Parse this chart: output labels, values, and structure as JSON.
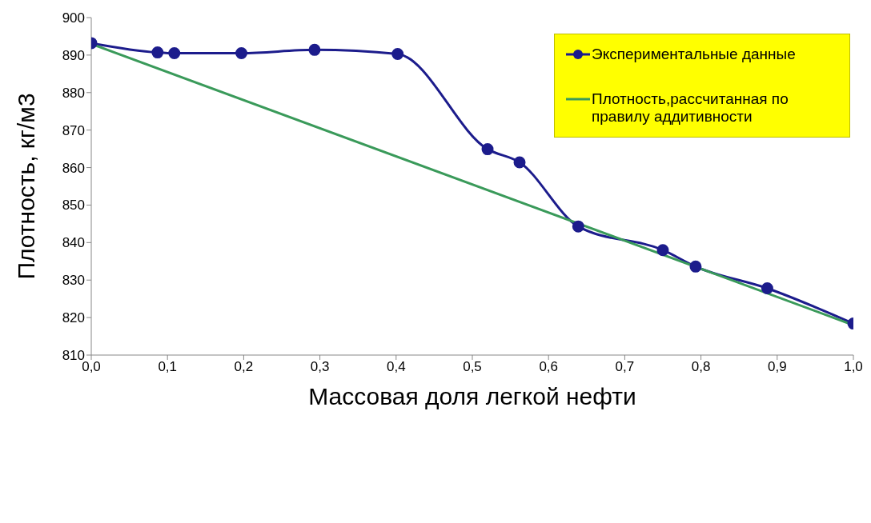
{
  "chart_data": {
    "type": "line",
    "xlabel": "Массовая доля легкой нефти",
    "ylabel": "Плотность,  кг/м3",
    "xlim": [
      0,
      1
    ],
    "xticks": [
      {
        "value": 0,
        "label": "0,0"
      },
      {
        "value": 0.1,
        "label": "0,1"
      },
      {
        "value": 0.2,
        "label": "0,2"
      },
      {
        "value": 0.3,
        "label": "0,3"
      },
      {
        "value": 0.4,
        "label": "0,4"
      },
      {
        "value": 0.5,
        "label": "0,5"
      },
      {
        "value": 0.6,
        "label": "0,6"
      },
      {
        "value": 0.7,
        "label": "0,7"
      },
      {
        "value": 0.8,
        "label": "0,8"
      },
      {
        "value": 0.9,
        "label": "0,9"
      },
      {
        "value": 1,
        "label": "1,0"
      }
    ],
    "ylim": [
      810,
      900
    ],
    "yticks": [
      810,
      820,
      830,
      840,
      850,
      860,
      870,
      880,
      890,
      900
    ],
    "grid": false,
    "legend": "top right",
    "series": [
      {
        "name": "Экспериментальные данные",
        "color": "#1c1c8c",
        "marker": "circle",
        "x": [
          0,
          0.087,
          0.109,
          0.197,
          0.293,
          0.402,
          0.52,
          0.562,
          0.639,
          0.75,
          0.793,
          0.887,
          1.0
        ],
        "values": [
          893.2,
          890.7,
          890.5,
          890.5,
          891.4,
          890.3,
          864.9,
          861.4,
          844.3,
          838.0,
          833.6,
          827.8,
          818.4
        ]
      },
      {
        "name": "Плотность,рассчитанная по правилу аддитивности",
        "color": "#3a9a5a",
        "marker": "none",
        "x": [
          0,
          1
        ],
        "values": [
          893,
          818
        ]
      }
    ]
  }
}
